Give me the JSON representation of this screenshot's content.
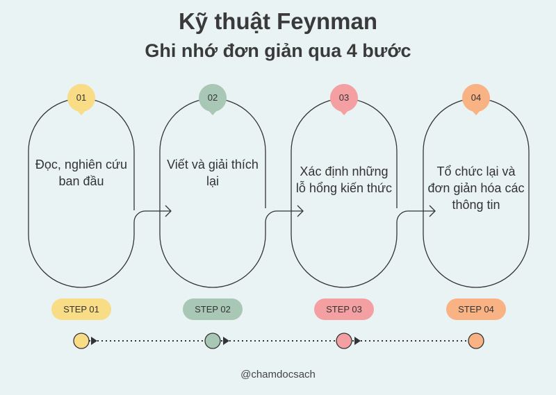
{
  "title": "Kỹ thuật Feynman",
  "subtitle": "Ghi nhớ đơn giản qua 4 bước",
  "steps": [
    {
      "number": "01",
      "text": "Đọc, nghiên cứu ban đầu",
      "pill": "STEP 01",
      "color": "#f8dc86"
    },
    {
      "number": "02",
      "text": "Viết và giải thích lại",
      "pill": "STEP 02",
      "color": "#a8c7b5"
    },
    {
      "number": "03",
      "text": "Xác định những lỗ hổng kiến thức",
      "pill": "STEP 03",
      "color": "#f4a0a3"
    },
    {
      "number": "04",
      "text": "Tổ chức lại và đơn giản hóa các thông tin",
      "pill": "STEP 04",
      "color": "#f8b283"
    }
  ],
  "footer": "@chamdocsach"
}
